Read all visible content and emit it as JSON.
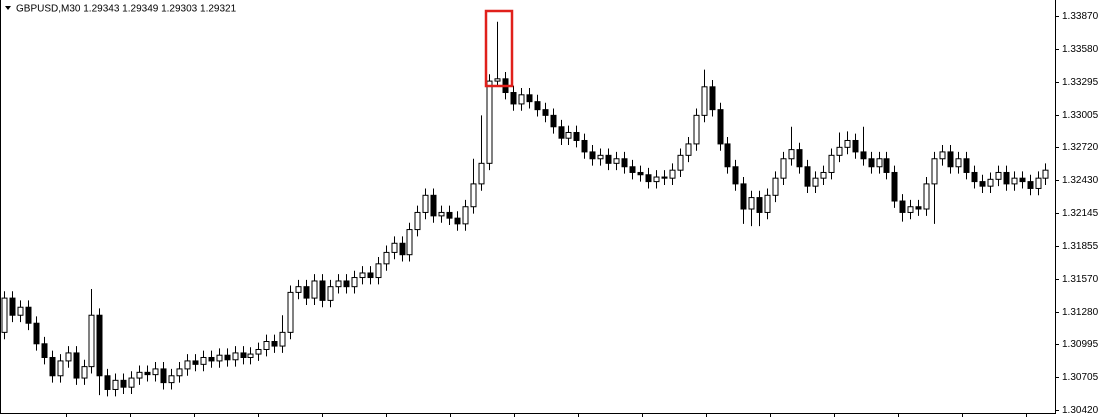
{
  "chart_data": {
    "type": "candlestick",
    "title": "GBPUSD,M30  1.29343 1.29349 1.29303 1.29321",
    "up_color": "#ffffff",
    "down_color": "#000000",
    "wick_color": "#000000",
    "ylim": [
      1.30394,
      1.3401
    ],
    "yticks": [
      {
        "value": 1.3387,
        "label": "1.33870"
      },
      {
        "value": 1.3358,
        "label": "1.33580"
      },
      {
        "value": 1.33295,
        "label": "1.33295"
      },
      {
        "value": 1.33005,
        "label": "1.33005"
      },
      {
        "value": 1.3272,
        "label": "1.32720"
      },
      {
        "value": 1.3243,
        "label": "1.32430"
      },
      {
        "value": 1.32145,
        "label": "1.32145"
      },
      {
        "value": 1.31855,
        "label": "1.31855"
      },
      {
        "value": 1.3157,
        "label": "1.31570"
      },
      {
        "value": 1.3128,
        "label": "1.31280"
      },
      {
        "value": 1.30995,
        "label": "1.30995"
      },
      {
        "value": 1.30705,
        "label": "1.30705"
      },
      {
        "value": 1.3042,
        "label": "1.30420"
      }
    ],
    "open": [
      1.311,
      1.314,
      1.3125,
      1.3132,
      1.3118,
      1.31,
      1.3088,
      1.3072,
      1.3085,
      1.3092,
      1.307,
      1.308,
      1.3125,
      1.3072,
      1.306,
      1.3068,
      1.3062,
      1.307,
      1.3075,
      1.3073,
      1.3078,
      1.3066,
      1.3072,
      1.3078,
      1.3085,
      1.3082,
      1.3088,
      1.3085,
      1.309,
      1.3086,
      1.3092,
      1.3088,
      1.3091,
      1.3095,
      1.3102,
      1.3098,
      1.311,
      1.3145,
      1.315,
      1.314,
      1.3155,
      1.3138,
      1.315,
      1.3155,
      1.315,
      1.3158,
      1.3162,
      1.3158,
      1.317,
      1.318,
      1.3188,
      1.3178,
      1.32,
      1.3215,
      1.323,
      1.3212,
      1.3215,
      1.321,
      1.3205,
      1.322,
      1.324,
      1.3258,
      1.333,
      1.3332,
      1.332,
      1.331,
      1.3318,
      1.3312,
      1.3305,
      1.33,
      1.329,
      1.328,
      1.3285,
      1.3278,
      1.3268,
      1.3262,
      1.3265,
      1.3258,
      1.3262,
      1.3255,
      1.325,
      1.3248,
      1.3242,
      1.3246,
      1.3245,
      1.3252,
      1.3265,
      1.3275,
      1.33,
      1.3325,
      1.3305,
      1.3275,
      1.3255,
      1.324,
      1.3218,
      1.3228,
      1.3215,
      1.323,
      1.3245,
      1.3262,
      1.327,
      1.3255,
      1.3238,
      1.3245,
      1.325,
      1.3265,
      1.3272,
      1.3278,
      1.3268,
      1.3262,
      1.3255,
      1.3262,
      1.325,
      1.3225,
      1.3215,
      1.322,
      1.3218,
      1.324,
      1.3262,
      1.3268,
      1.3255,
      1.3262,
      1.325,
      1.3242,
      1.3238,
      1.3244,
      1.325,
      1.324,
      1.3245,
      1.3242,
      1.3236,
      1.3245
    ],
    "high": [
      1.3146,
      1.3146,
      1.3138,
      1.3138,
      1.3124,
      1.3106,
      1.3094,
      1.3091,
      1.3098,
      1.3098,
      1.3086,
      1.3148,
      1.3131,
      1.3078,
      1.3074,
      1.3074,
      1.3076,
      1.3081,
      1.3081,
      1.3084,
      1.3084,
      1.3078,
      1.3084,
      1.3091,
      1.3091,
      1.3094,
      1.3094,
      1.3096,
      1.3096,
      1.3098,
      1.3098,
      1.3097,
      1.3101,
      1.3108,
      1.3108,
      1.3125,
      1.3151,
      1.3156,
      1.3156,
      1.3161,
      1.3161,
      1.3156,
      1.3161,
      1.3161,
      1.3164,
      1.3168,
      1.3168,
      1.3176,
      1.3186,
      1.3194,
      1.3194,
      1.3206,
      1.3221,
      1.3236,
      1.3236,
      1.3221,
      1.3221,
      1.3216,
      1.3226,
      1.3262,
      1.33,
      1.3336,
      1.3382,
      1.3338,
      1.3326,
      1.3324,
      1.3324,
      1.3318,
      1.3311,
      1.3306,
      1.3296,
      1.3291,
      1.3291,
      1.3284,
      1.3274,
      1.3271,
      1.3271,
      1.3268,
      1.3268,
      1.3261,
      1.3256,
      1.3254,
      1.3252,
      1.3252,
      1.3258,
      1.3271,
      1.3281,
      1.3306,
      1.334,
      1.3331,
      1.3311,
      1.3281,
      1.3261,
      1.3246,
      1.3234,
      1.3234,
      1.3236,
      1.3251,
      1.3268,
      1.329,
      1.3276,
      1.3261,
      1.3251,
      1.3256,
      1.3271,
      1.3285,
      1.3286,
      1.3284,
      1.329,
      1.3268,
      1.3268,
      1.3268,
      1.3256,
      1.3231,
      1.3226,
      1.3226,
      1.3246,
      1.3268,
      1.3274,
      1.3274,
      1.3268,
      1.3268,
      1.3256,
      1.3248,
      1.325,
      1.3256,
      1.3256,
      1.3251,
      1.3251,
      1.3248,
      1.3251,
      1.3258
    ],
    "low": [
      1.3104,
      1.3119,
      1.3119,
      1.3112,
      1.3094,
      1.3082,
      1.3066,
      1.3066,
      1.3079,
      1.3064,
      1.3064,
      1.3074,
      1.3055,
      1.3054,
      1.3054,
      1.3056,
      1.3056,
      1.3064,
      1.3067,
      1.3067,
      1.306,
      1.306,
      1.3066,
      1.3072,
      1.3076,
      1.3076,
      1.3079,
      1.3079,
      1.308,
      1.308,
      1.3082,
      1.3082,
      1.3085,
      1.3089,
      1.3092,
      1.3092,
      1.3104,
      1.3139,
      1.3134,
      1.3134,
      1.3132,
      1.3132,
      1.3144,
      1.3144,
      1.3144,
      1.3152,
      1.3152,
      1.3152,
      1.3164,
      1.3174,
      1.3172,
      1.3172,
      1.3194,
      1.3209,
      1.3206,
      1.3206,
      1.3204,
      1.3199,
      1.3199,
      1.3214,
      1.3234,
      1.3252,
      1.3326,
      1.3314,
      1.3304,
      1.3304,
      1.3306,
      1.3299,
      1.3294,
      1.3284,
      1.3274,
      1.3274,
      1.3272,
      1.3262,
      1.3256,
      1.3256,
      1.3252,
      1.3252,
      1.3249,
      1.3244,
      1.3242,
      1.3236,
      1.3236,
      1.3239,
      1.3239,
      1.3246,
      1.3259,
      1.3269,
      1.3294,
      1.3299,
      1.3269,
      1.3249,
      1.3234,
      1.3205,
      1.3203,
      1.3203,
      1.3209,
      1.3224,
      1.3239,
      1.3256,
      1.3249,
      1.3232,
      1.3232,
      1.3239,
      1.3244,
      1.3259,
      1.3266,
      1.3262,
      1.3256,
      1.3249,
      1.3249,
      1.3244,
      1.3219,
      1.3207,
      1.3209,
      1.3212,
      1.3212,
      1.3205,
      1.3256,
      1.3249,
      1.3249,
      1.3244,
      1.3236,
      1.3232,
      1.3232,
      1.3238,
      1.3234,
      1.3234,
      1.3236,
      1.323,
      1.323,
      1.3239
    ],
    "close": [
      1.314,
      1.3125,
      1.3132,
      1.3118,
      1.31,
      1.3088,
      1.3072,
      1.3085,
      1.3092,
      1.307,
      1.308,
      1.3125,
      1.3072,
      1.306,
      1.3068,
      1.3062,
      1.307,
      1.3075,
      1.3073,
      1.3078,
      1.3066,
      1.3072,
      1.3078,
      1.3085,
      1.3082,
      1.3088,
      1.3085,
      1.309,
      1.3086,
      1.3092,
      1.3088,
      1.3091,
      1.3095,
      1.3102,
      1.3098,
      1.311,
      1.3145,
      1.315,
      1.314,
      1.3155,
      1.3138,
      1.315,
      1.3155,
      1.315,
      1.3158,
      1.3162,
      1.3158,
      1.317,
      1.318,
      1.3188,
      1.3178,
      1.32,
      1.3215,
      1.323,
      1.3212,
      1.3215,
      1.321,
      1.3205,
      1.322,
      1.324,
      1.3258,
      1.333,
      1.3332,
      1.332,
      1.331,
      1.3318,
      1.3312,
      1.3305,
      1.33,
      1.329,
      1.328,
      1.3285,
      1.3278,
      1.3268,
      1.3262,
      1.3265,
      1.3258,
      1.3262,
      1.3255,
      1.325,
      1.3248,
      1.3242,
      1.3246,
      1.3245,
      1.3252,
      1.3265,
      1.3275,
      1.33,
      1.3325,
      1.3305,
      1.3275,
      1.3255,
      1.324,
      1.3218,
      1.3228,
      1.3215,
      1.323,
      1.3245,
      1.3262,
      1.327,
      1.3255,
      1.3238,
      1.3245,
      1.325,
      1.3265,
      1.3272,
      1.3278,
      1.3268,
      1.3262,
      1.3255,
      1.3262,
      1.325,
      1.3225,
      1.3215,
      1.322,
      1.3218,
      1.324,
      1.3262,
      1.3268,
      1.3255,
      1.3262,
      1.325,
      1.3242,
      1.3238,
      1.3244,
      1.325,
      1.324,
      1.3245,
      1.3242,
      1.3236,
      1.3245,
      1.3252
    ]
  }
}
